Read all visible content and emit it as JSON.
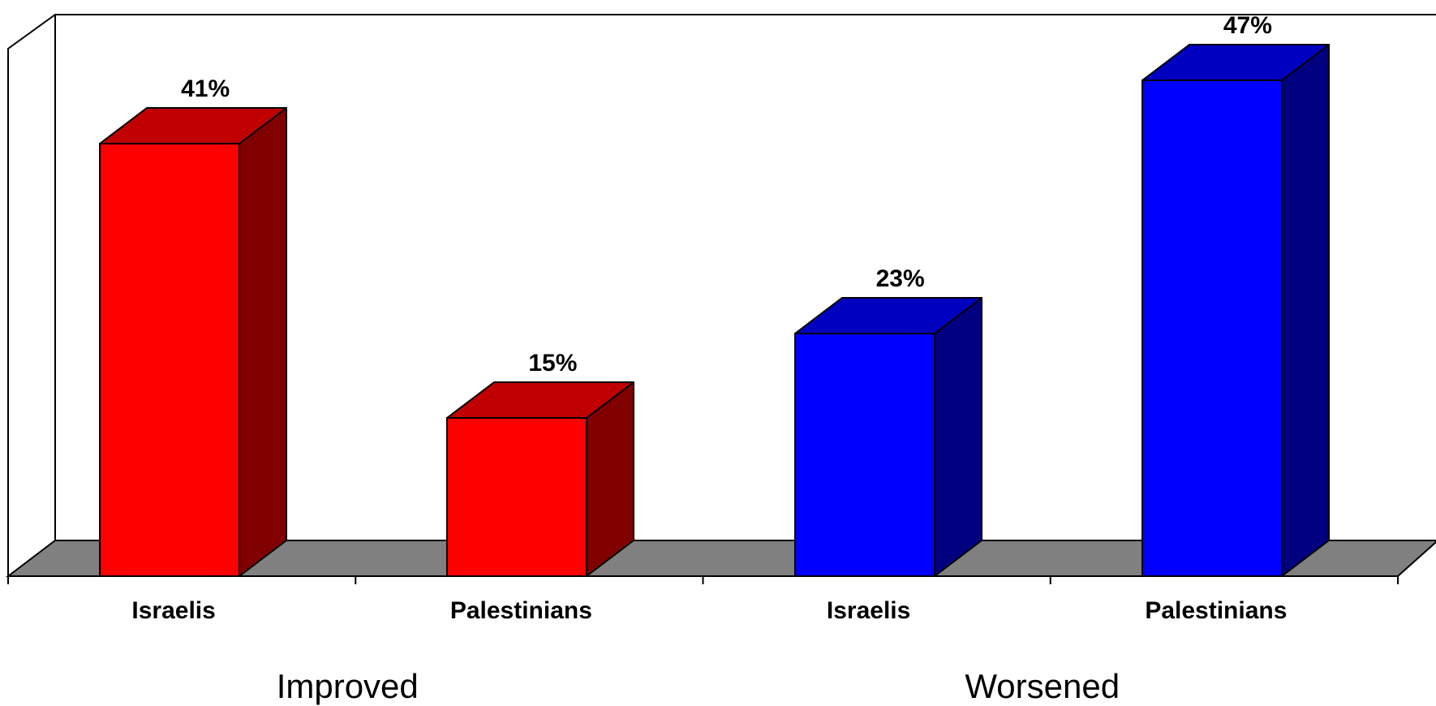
{
  "chart_data": {
    "type": "bar",
    "groups": [
      "Improved",
      "Worsened"
    ],
    "categories": [
      "Israelis",
      "Palestinians",
      "Israelis",
      "Palestinians"
    ],
    "category_group": [
      0,
      0,
      1,
      1
    ],
    "values": [
      41,
      15,
      23,
      47
    ],
    "value_labels": [
      "41%",
      "15%",
      "23%",
      "47%"
    ],
    "ylim": [
      0,
      50
    ],
    "grid": false,
    "legend": "none",
    "title": "",
    "xlabel": "",
    "ylabel": ""
  },
  "colors": {
    "improved": {
      "front": "#ff0000",
      "top": "#c00000",
      "side": "#800000"
    },
    "worsened": {
      "front": "#0000ff",
      "top": "#0000c0",
      "side": "#000080"
    },
    "floor": "#808080",
    "outline": "#000000"
  }
}
